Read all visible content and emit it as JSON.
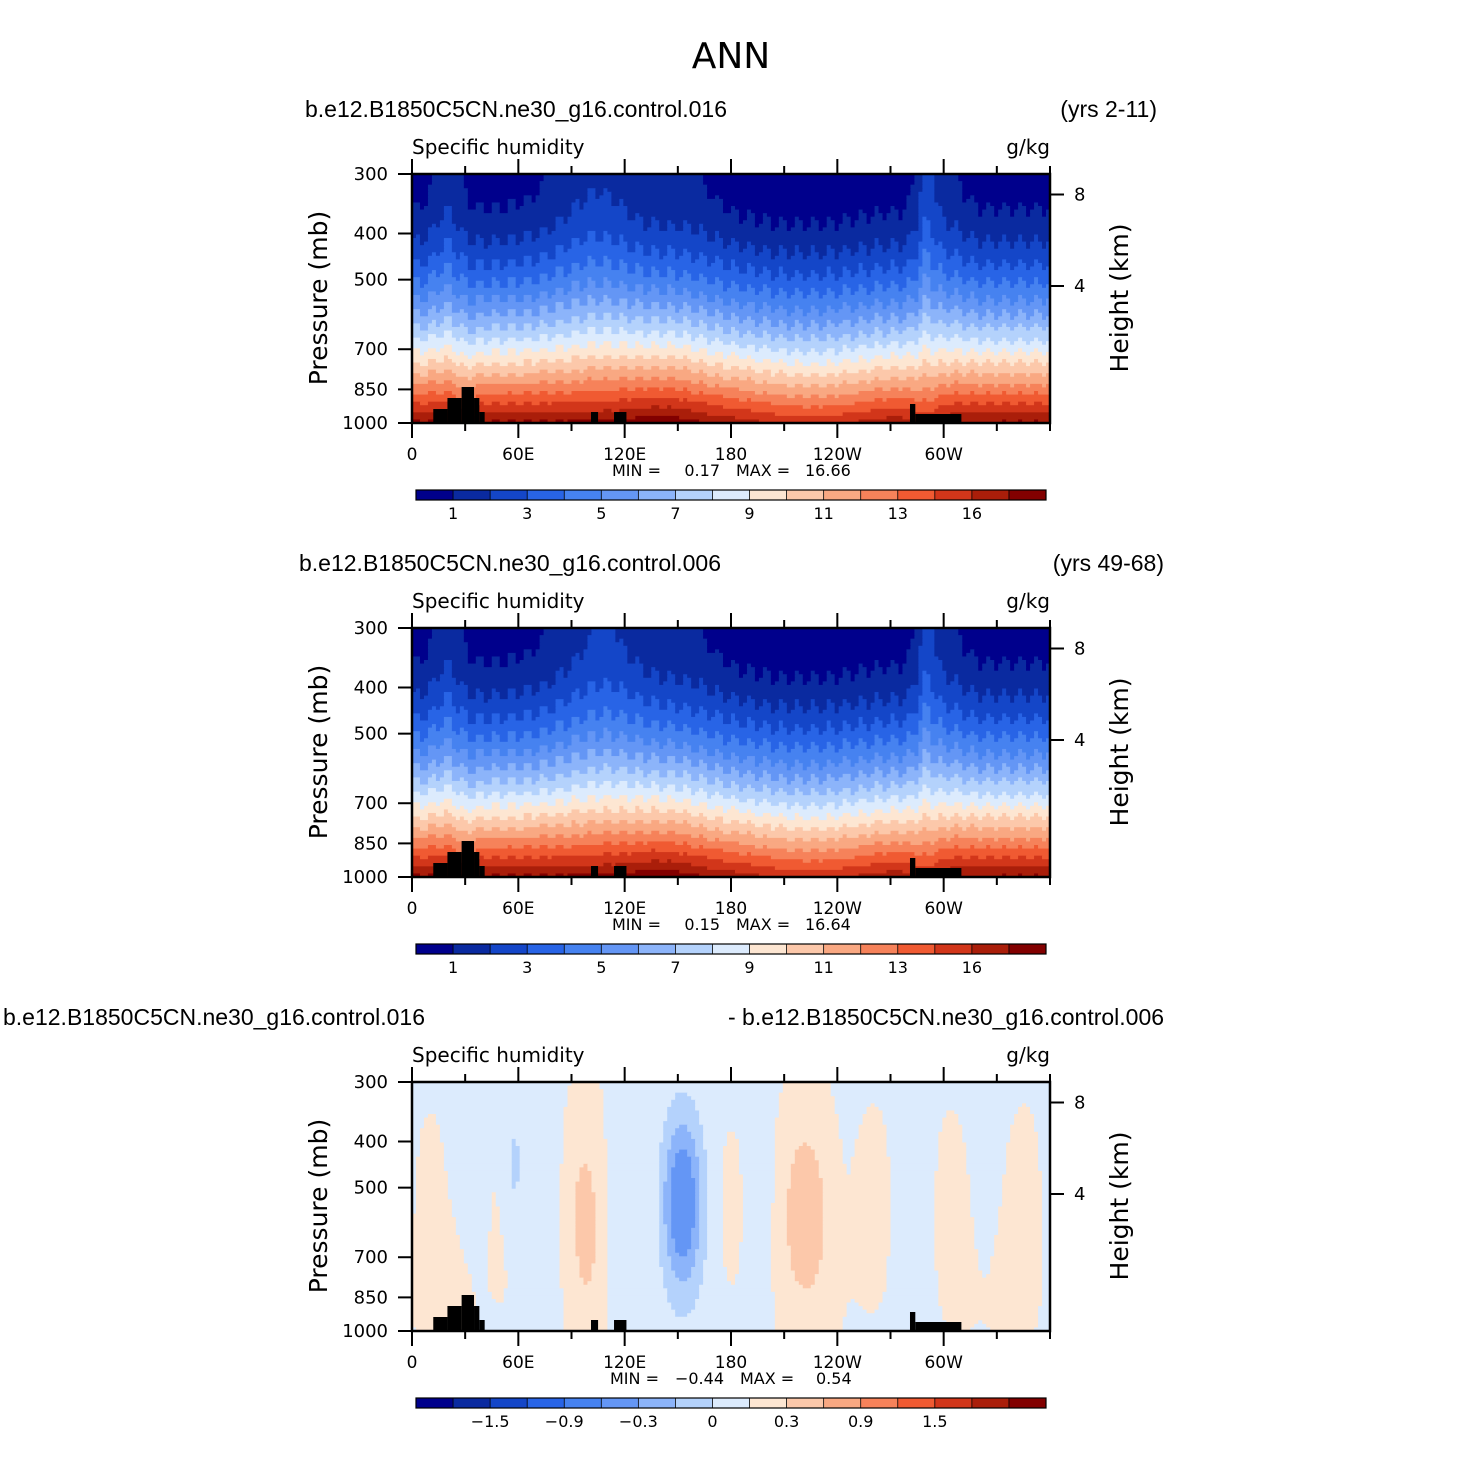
{
  "page": {
    "title": "ANN"
  },
  "colors": {
    "abs_palette": [
      "#00008c",
      "#0a2aa0",
      "#1446c8",
      "#2864e6",
      "#4682f0",
      "#6496f5",
      "#8cb4fa",
      "#b4d2fc",
      "#dcebfd",
      "#fde6d2",
      "#fcc8aa",
      "#f9a882",
      "#f6825a",
      "#f05a32",
      "#d2361a",
      "#aa1e0a",
      "#820000"
    ],
    "diff_palette": [
      "#00008c",
      "#0a2aa0",
      "#1446c8",
      "#2864e6",
      "#4682f0",
      "#6496f5",
      "#8cb4fa",
      "#b4d2fc",
      "#dcebfd",
      "#fde6d2",
      "#fcc8aa",
      "#f9a882",
      "#f6825a",
      "#f05a32",
      "#d2361a",
      "#aa1e0a",
      "#820000"
    ],
    "land": "#000000"
  },
  "chart_data": [
    {
      "type": "heatmap",
      "case": "b.e12.B1850C5CN.ne30_g16.control.016",
      "years": "(yrs 2-11)",
      "left_string": "Specific humidity",
      "right_string": "g/kg",
      "ylabel": "Pressure (mb)",
      "ylabel_right": "Height (km)",
      "y_ticks": [
        "300",
        "400",
        "500",
        "700",
        "850",
        "1000"
      ],
      "y_ticks_right": [
        "8",
        "4"
      ],
      "x_ticks": [
        "0",
        "60E",
        "120E",
        "180",
        "120W",
        "60W"
      ],
      "min_label": "MIN =",
      "min_value": "0.17",
      "max_label": "MAX =",
      "max_value": "16.66",
      "colorbar_labels": [
        "1",
        "3",
        "5",
        "7",
        "9",
        "11",
        "13",
        "16"
      ],
      "value_range": [
        0.17,
        16.66
      ]
    },
    {
      "type": "heatmap",
      "case": "b.e12.B1850C5CN.ne30_g16.control.006",
      "years": "(yrs 49-68)",
      "left_string": "Specific humidity",
      "right_string": "g/kg",
      "ylabel": "Pressure (mb)",
      "ylabel_right": "Height (km)",
      "y_ticks": [
        "300",
        "400",
        "500",
        "700",
        "850",
        "1000"
      ],
      "y_ticks_right": [
        "8",
        "4"
      ],
      "x_ticks": [
        "0",
        "60E",
        "120E",
        "180",
        "120W",
        "60W"
      ],
      "min_label": "MIN =",
      "min_value": "0.15",
      "max_label": "MAX =",
      "max_value": "16.64",
      "colorbar_labels": [
        "1",
        "3",
        "5",
        "7",
        "9",
        "11",
        "13",
        "16"
      ],
      "value_range": [
        0.15,
        16.64
      ]
    },
    {
      "type": "heatmap",
      "case": "b.e12.B1850C5CN.ne30_g16.control.016",
      "case2": "- b.e12.B1850C5CN.ne30_g16.control.006",
      "left_string": "Specific humidity",
      "right_string": "g/kg",
      "ylabel": "Pressure (mb)",
      "ylabel_right": "Height (km)",
      "y_ticks": [
        "300",
        "400",
        "500",
        "700",
        "850",
        "1000"
      ],
      "y_ticks_right": [
        "8",
        "4"
      ],
      "x_ticks": [
        "0",
        "60E",
        "120E",
        "180",
        "120W",
        "60W"
      ],
      "min_label": "MIN =",
      "min_value": "−0.44",
      "max_label": "MAX =",
      "max_value": "0.54",
      "colorbar_labels": [
        "−1.5",
        "−0.9",
        "−0.3",
        "0",
        "0.3",
        "0.9",
        "1.5"
      ],
      "value_range": [
        -0.44,
        0.54
      ]
    }
  ]
}
